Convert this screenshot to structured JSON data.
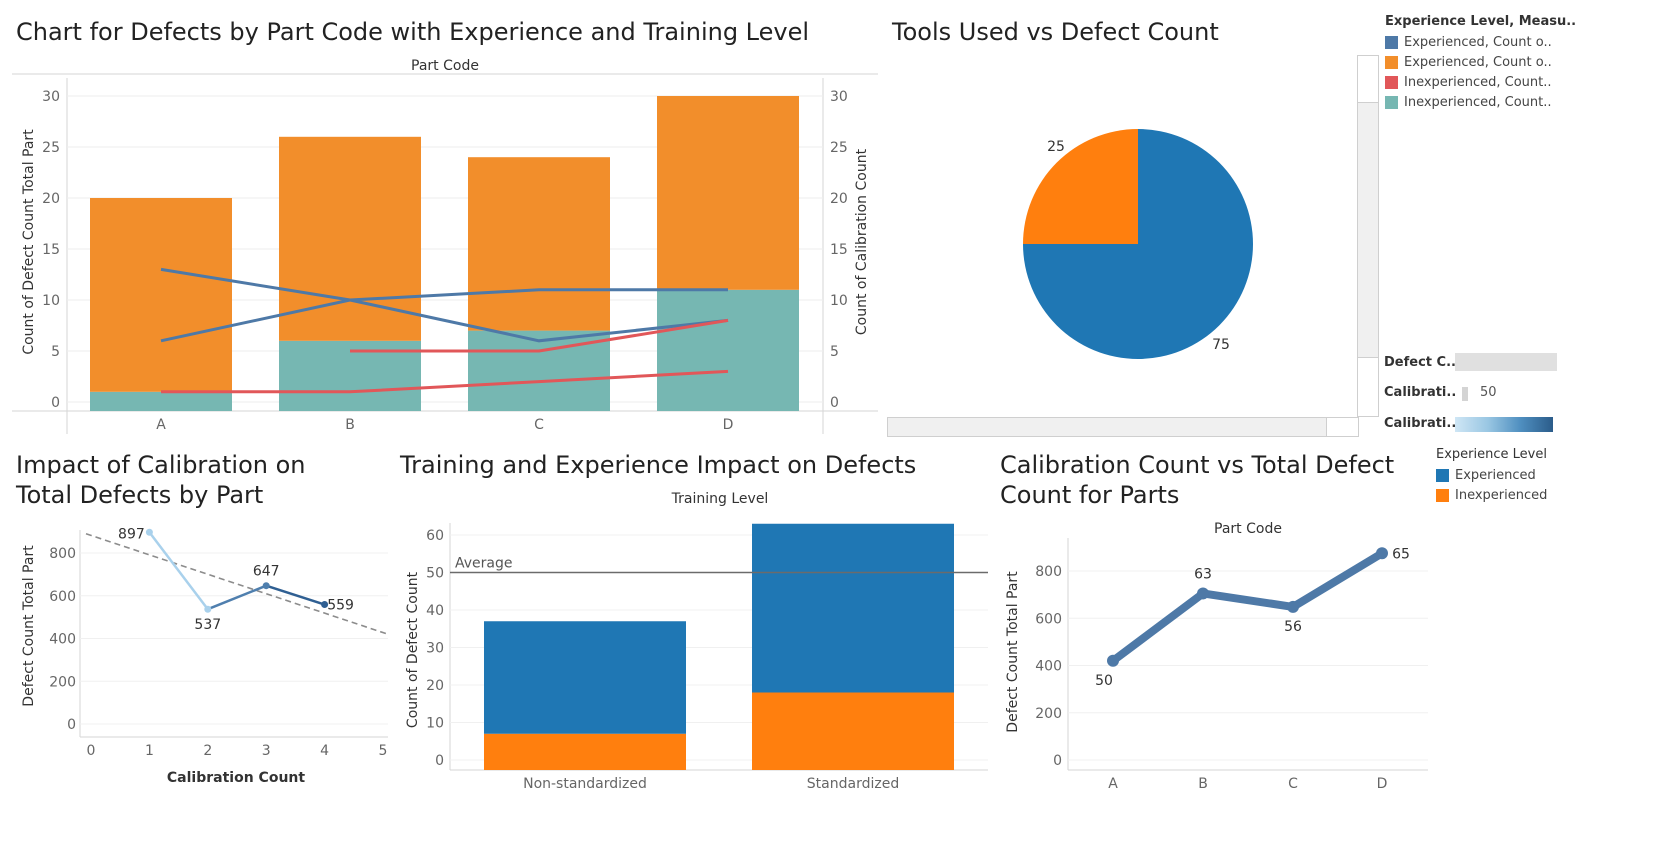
{
  "titles": {
    "defects_by_part": "Chart for Defects by Part Code with Experience and Training Level",
    "tools_vs_defects": "Tools Used vs Defect Count",
    "calibration_impact": "Impact of Calibration on Total Defects by Part",
    "training_experience": "Training and Experience Impact on Defects",
    "calibration_vs_defects": "Calibration Count vs Total Defect Count for Parts"
  },
  "legend_top": {
    "title": "Experience Level, Measu..",
    "items": [
      {
        "label": "Experienced, Count o..",
        "color": "#4e79a7"
      },
      {
        "label": "Experienced, Count o..",
        "color": "#f28e2b"
      },
      {
        "label": "Inexperienced, Count..",
        "color": "#e15759"
      },
      {
        "label": "Inexperienced, Count..",
        "color": "#76b7b2"
      }
    ]
  },
  "legend_bottom": {
    "title": "Experience Level",
    "items": [
      {
        "label": "Experienced",
        "color": "#1f77b4"
      },
      {
        "label": "Inexperienced",
        "color": "#ff7f0e"
      }
    ]
  },
  "controls": {
    "defect_label": "Defect C..",
    "calibration_label": "Calibrati..",
    "calibration_value": "50",
    "calibration_color_label": "Calibrati.."
  },
  "chart_data": [
    {
      "type": "bar",
      "title": "Chart for Defects by Part Code with Experience and Training Level",
      "header": "Part Code",
      "categories": [
        "A",
        "B",
        "C",
        "D"
      ],
      "ylabel": "Count of Defect Count Total Part",
      "y2label": "Count of Calibration Count",
      "ylim": [
        0,
        30
      ],
      "yticks": [
        0,
        5,
        10,
        15,
        20,
        25,
        30
      ],
      "bars": [
        {
          "name": "Inexperienced",
          "color": "#76b7b2",
          "values": [
            1,
            6,
            7,
            11
          ]
        },
        {
          "name": "Experienced",
          "color": "#f28e2b",
          "values": [
            19,
            20,
            17,
            19
          ]
        }
      ],
      "lines": [
        {
          "color": "#4e79a7",
          "values": [
            13,
            10,
            6,
            8
          ]
        },
        {
          "color": "#4e79a7",
          "values": [
            6,
            10,
            11,
            11
          ]
        },
        {
          "color": "#e15759",
          "values": [
            null,
            5,
            5,
            8
          ]
        },
        {
          "color": "#e15759",
          "values": [
            1,
            1,
            2,
            3
          ]
        }
      ]
    },
    {
      "type": "pie",
      "title": "Tools Used vs Defect Count",
      "slices": [
        {
          "label": "75",
          "value": 75,
          "color": "#1f77b4"
        },
        {
          "label": "25",
          "value": 25,
          "color": "#ff7f0e"
        }
      ]
    },
    {
      "type": "line",
      "title": "Impact of Calibration on Total Defects by Part",
      "xlabel": "Calibration Count",
      "ylabel": "Defect Count Total Part",
      "xlim": [
        0,
        5
      ],
      "ylim": [
        0,
        900
      ],
      "xticks": [
        0,
        1,
        2,
        3,
        4,
        5
      ],
      "yticks": [
        0,
        200,
        400,
        600,
        800
      ],
      "x": [
        1,
        2,
        3,
        4
      ],
      "y": [
        897,
        537,
        647,
        559
      ],
      "point_labels": [
        "897",
        "537",
        "647",
        "559"
      ],
      "trend": {
        "x": [
          0,
          5
        ],
        "y": [
          890,
          420
        ]
      }
    },
    {
      "type": "bar",
      "title": "Training and Experience Impact on Defects",
      "header": "Training Level",
      "categories": [
        "Non-standardized",
        "Standardized"
      ],
      "ylabel": "Count of Defect Count",
      "ylim": [
        0,
        63
      ],
      "yticks": [
        0,
        10,
        20,
        30,
        40,
        50,
        60
      ],
      "series": [
        {
          "name": "Inexperienced",
          "color": "#ff7f0e",
          "values": [
            7,
            18
          ]
        },
        {
          "name": "Experienced",
          "color": "#1f77b4",
          "values": [
            30,
            45
          ]
        }
      ],
      "reference_line": {
        "label": "Average",
        "value": 50
      }
    },
    {
      "type": "line",
      "title": "Calibration Count vs Total Defect Count for Parts",
      "header": "Part Code",
      "ylabel": "Defect Count Total Part",
      "categories": [
        "A",
        "B",
        "C",
        "D"
      ],
      "values": [
        420,
        705,
        648,
        875
      ],
      "point_labels": [
        "50",
        "63",
        "56",
        "65"
      ],
      "ylim": [
        0,
        900
      ],
      "yticks": [
        0,
        200,
        400,
        600,
        800
      ]
    }
  ]
}
